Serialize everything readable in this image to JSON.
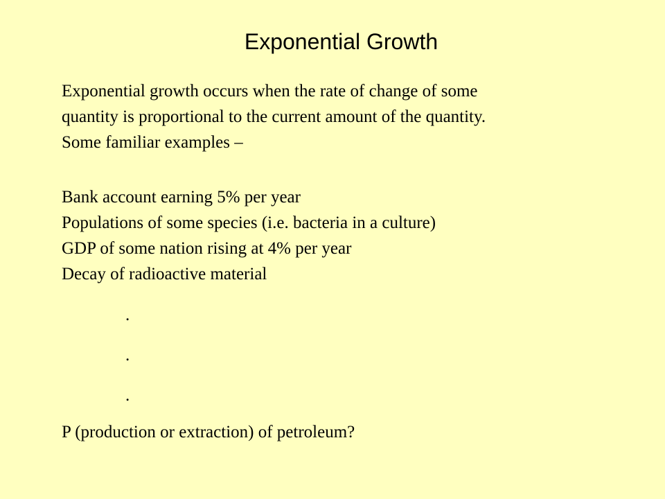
{
  "slide": {
    "title": "Exponential Growth",
    "intro_lines": [
      "Exponential growth occurs when the rate of change of some",
      "quantity is proportional to the current amount of the quantity.",
      "Some familiar examples –"
    ],
    "examples": [
      "Bank account earning 5% per year",
      "Populations of some species (i.e. bacteria in a culture)",
      "GDP of some nation rising at 4% per year",
      "Decay of radioactive material"
    ],
    "ellipsis_dots": [
      ".",
      ".",
      "."
    ],
    "question": "P (production or extraction) of petroleum?"
  },
  "colors": {
    "background": "#ffffc0",
    "text": "#000000"
  }
}
